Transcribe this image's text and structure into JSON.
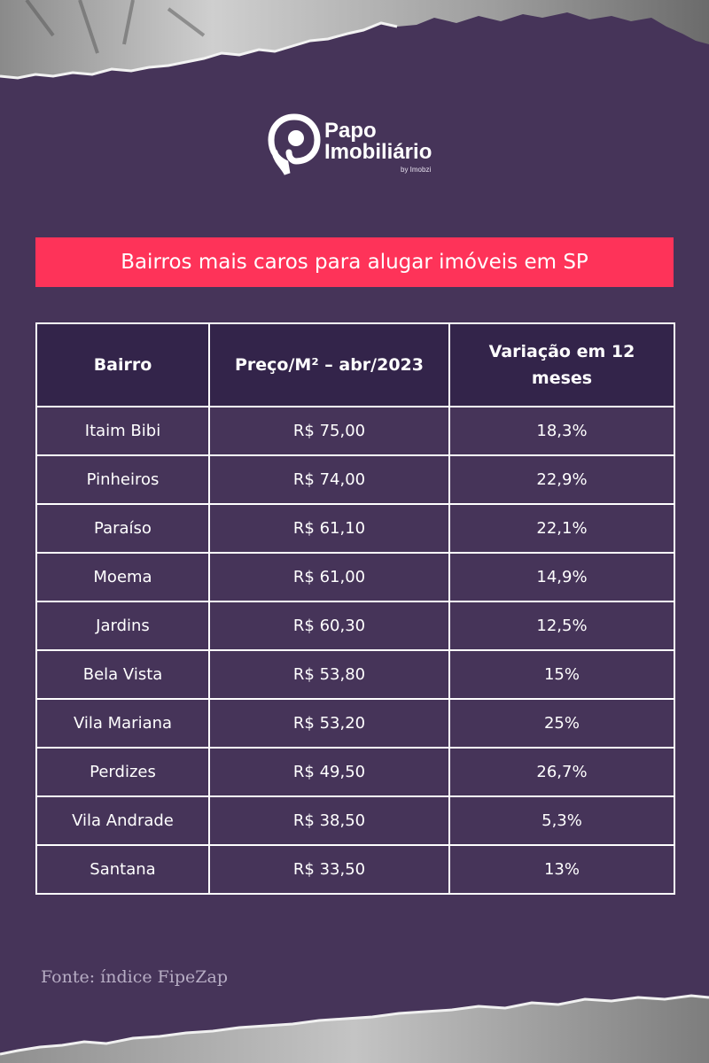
{
  "brand": {
    "line1": "Papo",
    "line2": "Imobiliário",
    "sub": "by Imobzi"
  },
  "title": "Bairros mais caros para alugar imóveis em SP",
  "table": {
    "headers": [
      "Bairro",
      "Preço/M² – abr/2023",
      "Variação em 12 meses"
    ],
    "rows": [
      [
        "Itaim Bibi",
        "R$ 75,00",
        "18,3%"
      ],
      [
        "Pinheiros",
        "R$ 74,00",
        "22,9%"
      ],
      [
        "Paraíso",
        "R$ 61,10",
        "22,1%"
      ],
      [
        "Moema",
        "R$ 61,00",
        "14,9%"
      ],
      [
        "Jardins",
        "R$ 60,30",
        "12,5%"
      ],
      [
        "Bela Vista",
        "R$ 53,80",
        "15%"
      ],
      [
        "Vila Mariana",
        "R$ 53,20",
        "25%"
      ],
      [
        "Perdizes",
        "R$ 49,50",
        "26,7%"
      ],
      [
        "Vila Andrade",
        "R$ 38,50",
        "5,3%"
      ],
      [
        "Santana",
        "R$ 33,50",
        "13%"
      ]
    ]
  },
  "source": "Fonte: índice FipeZap",
  "colors": {
    "background": "#463459",
    "accent": "#fe3359",
    "header": "#33244a"
  }
}
